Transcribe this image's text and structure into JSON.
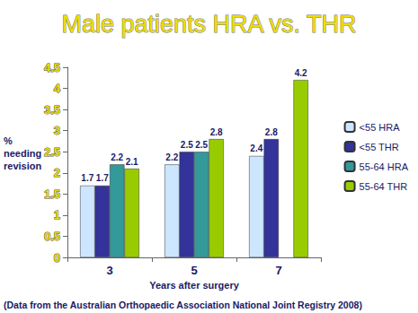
{
  "chart_data": {
    "type": "bar",
    "title": "Male patients HRA vs. THR",
    "categories": [
      "3",
      "5",
      "7"
    ],
    "series": [
      {
        "name": "<55 HRA",
        "color": "#cce6ff",
        "values": [
          1.7,
          2.2,
          2.4
        ]
      },
      {
        "name": "<55 THR",
        "color": "#333399",
        "values": [
          1.7,
          2.5,
          2.8
        ]
      },
      {
        "name": "55-64 HRA",
        "color": "#339999",
        "values": [
          2.2,
          2.5,
          null
        ]
      },
      {
        "name": "55-64 THR",
        "color": "#99cc00",
        "values": [
          2.1,
          2.8,
          4.2
        ]
      }
    ],
    "xlabel": "Years after surgery",
    "ylabel": "% needing revision",
    "annotation": "(Data from the Australian Orthopaedic Association National Joint Registry 2008)",
    "ylim": [
      0,
      4.5
    ],
    "yticks": [
      0,
      0.5,
      1,
      1.5,
      2,
      2.5,
      3,
      3.5,
      4,
      4.5
    ],
    "grid": false,
    "legend": "right",
    "data_labels": true
  }
}
